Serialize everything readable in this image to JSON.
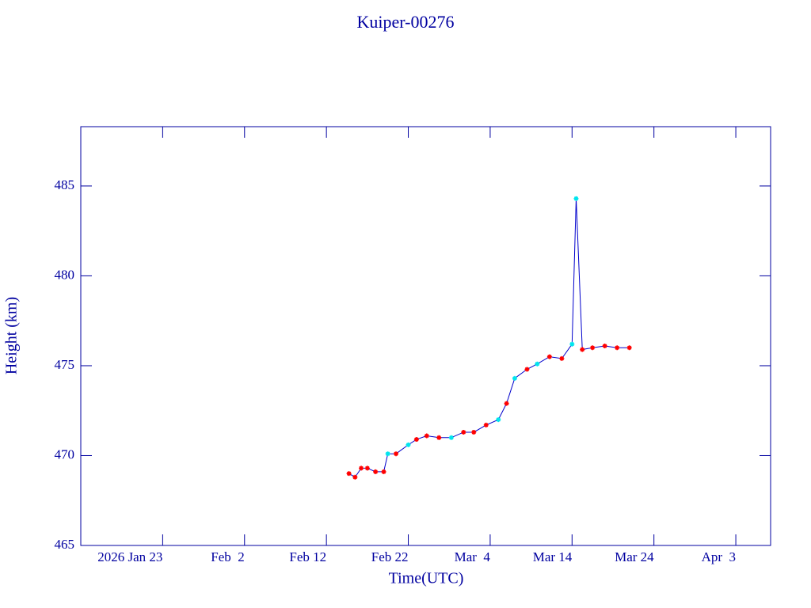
{
  "chart_data": {
    "type": "line",
    "title": "Kuiper-00276",
    "x_label": "Time(UTC)",
    "y_label": "Height (km)",
    "xlim": [
      "2026-01-13",
      "2026-04-07T06:00"
    ],
    "ylim": [
      465,
      488.3
    ],
    "xticks": [
      {
        "value": "2026-01-23",
        "label": "2026 Jan 23"
      },
      {
        "value": "2026-02-02",
        "label": "Feb  2"
      },
      {
        "value": "2026-02-12",
        "label": "Feb 12"
      },
      {
        "value": "2026-02-22",
        "label": "Feb 22"
      },
      {
        "value": "2026-03-04",
        "label": "Mar  4"
      },
      {
        "value": "2026-03-14",
        "label": "Mar 14"
      },
      {
        "value": "2026-03-24",
        "label": "Mar 24"
      },
      {
        "value": "2026-04-03",
        "label": "Apr  3"
      }
    ],
    "yticks": [
      465,
      470,
      475,
      480,
      485
    ],
    "axis_color": "#0000a0",
    "series": [
      {
        "color": "#0000cc",
        "x": [
          "2026-02-14T18:00",
          "2026-02-15T12:00",
          "2026-02-16T06:00",
          "2026-02-17",
          "2026-02-18",
          "2026-02-19",
          "2026-02-19T12:00",
          "2026-02-20T12:00",
          "2026-02-22",
          "2026-02-23",
          "2026-02-24T06:00",
          "2026-02-25T18:00",
          "2026-02-27T06:00",
          "2026-02-28T18:00",
          "2026-03-02",
          "2026-03-03T12:00",
          "2026-03-05",
          "2026-03-06",
          "2026-03-07",
          "2026-03-08T12:00",
          "2026-03-09T18:00",
          "2026-03-11T06:00",
          "2026-03-12T18:00",
          "2026-03-14",
          "2026-03-14T12:00",
          "2026-03-15T06:00",
          "2026-03-16T12:00",
          "2026-03-18",
          "2026-03-19T12:00",
          "2026-03-21"
        ],
        "values": [
          469.0,
          468.8,
          469.3,
          469.3,
          469.1,
          469.1,
          470.1,
          470.1,
          470.6,
          470.9,
          471.1,
          471.0,
          471.0,
          471.3,
          471.3,
          471.7,
          472.0,
          472.9,
          474.3,
          474.8,
          475.1,
          475.5,
          475.4,
          476.2,
          484.3,
          475.9,
          476.0,
          476.1,
          476.0,
          476.0
        ],
        "marker_colors": [
          "#ff0000",
          "#ff0000",
          "#ff0000",
          "#ff0000",
          "#ff0000",
          "#ff0000",
          "#00e5ee",
          "#ff0000",
          "#00e5ee",
          "#ff0000",
          "#ff0000",
          "#ff0000",
          "#00e5ee",
          "#ff0000",
          "#ff0000",
          "#ff0000",
          "#00e5ee",
          "#ff0000",
          "#00e5ee",
          "#ff0000",
          "#00e5ee",
          "#ff0000",
          "#ff0000",
          "#00e5ee",
          "#00e5ee",
          "#ff0000",
          "#ff0000",
          "#ff0000",
          "#ff0000",
          "#ff0000"
        ]
      }
    ]
  }
}
